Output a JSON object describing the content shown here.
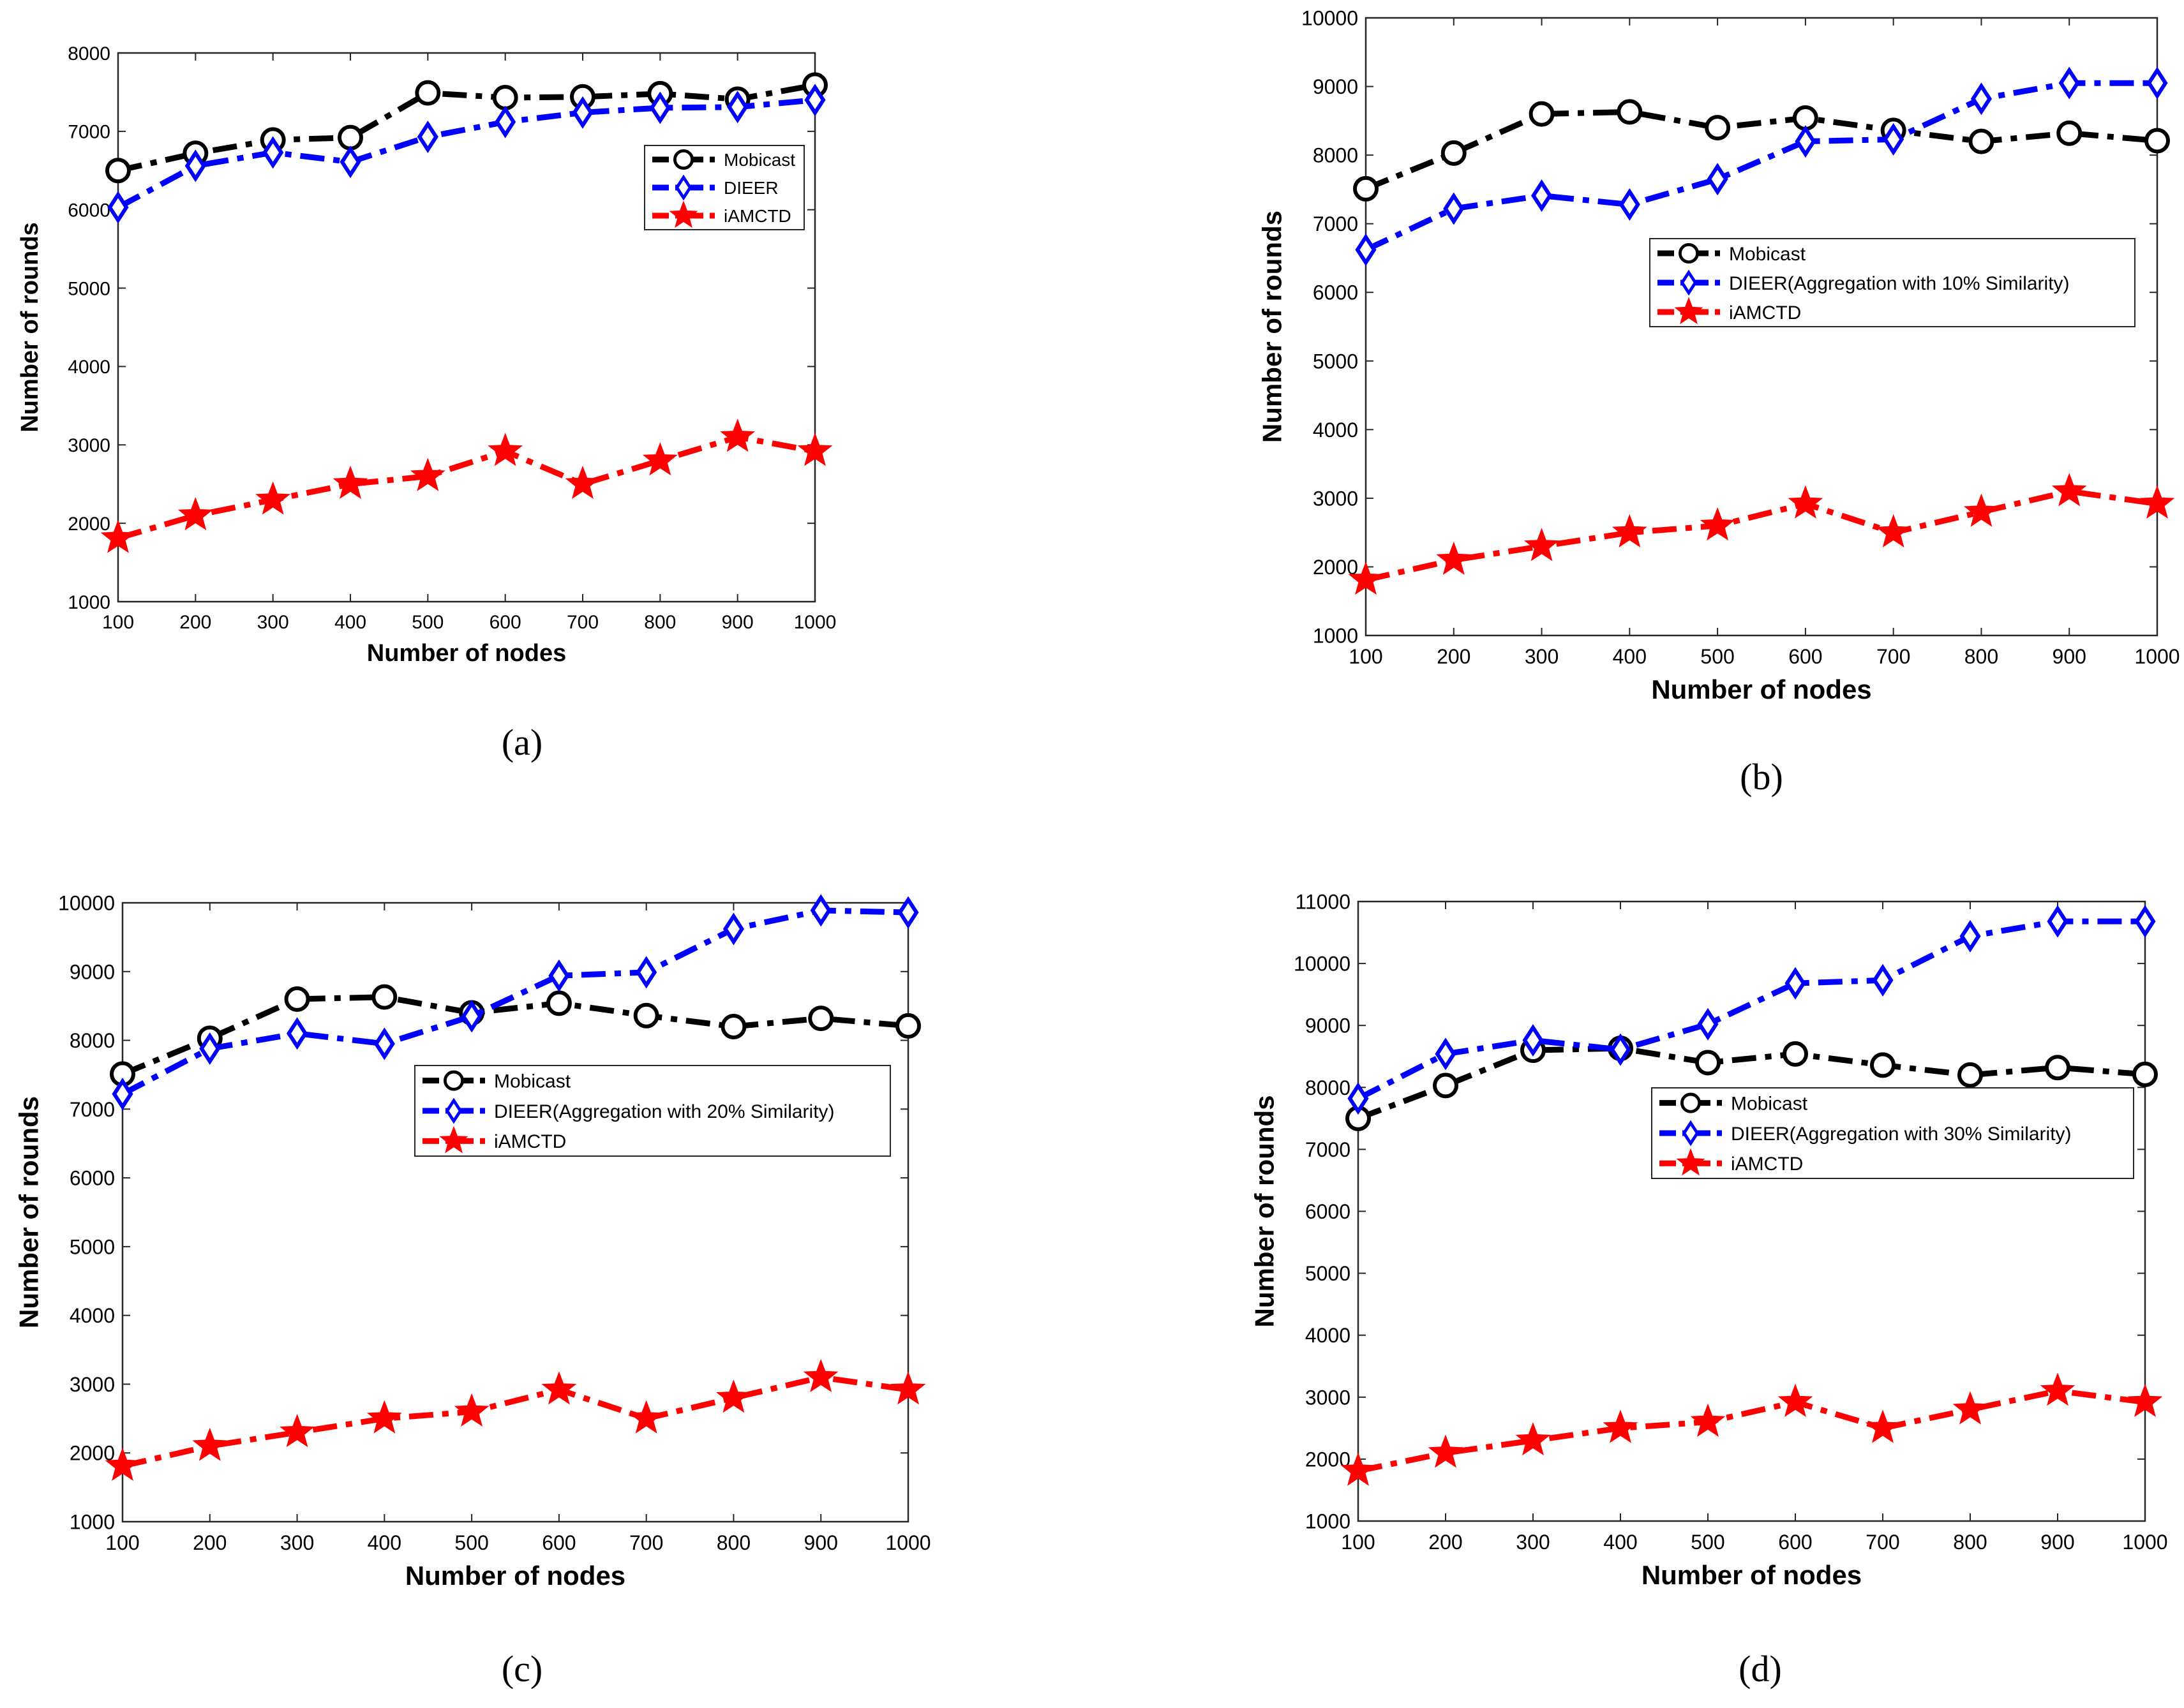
{
  "chart_data": [
    {
      "type": "line",
      "caption": "(a)",
      "xlabel": "Number of nodes",
      "ylabel": "Number of rounds",
      "xlim": [
        100,
        1000
      ],
      "ylim": [
        1000,
        8000
      ],
      "xticks": [
        100,
        200,
        300,
        400,
        500,
        600,
        700,
        800,
        900,
        1000
      ],
      "yticks": [
        1000,
        2000,
        3000,
        4000,
        5000,
        6000,
        7000,
        8000
      ],
      "grid": false,
      "legend_position": "upper-right",
      "x": [
        100,
        200,
        300,
        400,
        500,
        600,
        700,
        800,
        900,
        1000
      ],
      "series": [
        {
          "name": "Mobicast",
          "color": "#000000",
          "marker": "circle",
          "values": [
            6500,
            6720,
            6890,
            6920,
            7490,
            7430,
            7440,
            7480,
            7410,
            7590
          ]
        },
        {
          "name": "DIEER",
          "color": "#0000ff",
          "marker": "diamond",
          "values": [
            6030,
            6560,
            6730,
            6610,
            6930,
            7120,
            7240,
            7300,
            7310,
            7400
          ]
        },
        {
          "name": "iAMCTD",
          "color": "#ff0000",
          "marker": "star",
          "values": [
            1810,
            2100,
            2300,
            2500,
            2600,
            2920,
            2500,
            2800,
            3100,
            2920
          ]
        }
      ]
    },
    {
      "type": "line",
      "caption": "(b)",
      "xlabel": "Number of nodes",
      "ylabel": "Number of rounds",
      "xlim": [
        100,
        1000
      ],
      "ylim": [
        1000,
        10000
      ],
      "xticks": [
        100,
        200,
        300,
        400,
        500,
        600,
        700,
        800,
        900,
        1000
      ],
      "yticks": [
        1000,
        2000,
        3000,
        4000,
        5000,
        6000,
        7000,
        8000,
        9000,
        10000
      ],
      "grid": false,
      "legend_position": "upper-right",
      "x": [
        100,
        200,
        300,
        400,
        500,
        600,
        700,
        800,
        900,
        1000
      ],
      "series": [
        {
          "name": "Mobicast",
          "color": "#000000",
          "marker": "circle",
          "values": [
            7510,
            8030,
            8600,
            8630,
            8400,
            8540,
            8360,
            8200,
            8320,
            8210
          ]
        },
        {
          "name": "DIEER(Aggregation with 10% Similarity)",
          "color": "#0000ff",
          "marker": "diamond",
          "values": [
            6620,
            7220,
            7410,
            7280,
            7650,
            8200,
            8230,
            8820,
            9050,
            9050
          ]
        },
        {
          "name": "iAMCTD",
          "color": "#ff0000",
          "marker": "star",
          "values": [
            1810,
            2100,
            2300,
            2500,
            2600,
            2920,
            2500,
            2800,
            3100,
            2920
          ]
        }
      ]
    },
    {
      "type": "line",
      "caption": "(c)",
      "xlabel": "Number of nodes",
      "ylabel": "Number of rounds",
      "xlim": [
        100,
        1000
      ],
      "ylim": [
        1000,
        10000
      ],
      "xticks": [
        100,
        200,
        300,
        400,
        500,
        600,
        700,
        800,
        900,
        1000
      ],
      "yticks": [
        1000,
        2000,
        3000,
        4000,
        5000,
        6000,
        7000,
        8000,
        9000,
        10000
      ],
      "grid": false,
      "legend_position": "upper-right",
      "x": [
        100,
        200,
        300,
        400,
        500,
        600,
        700,
        800,
        900,
        1000
      ],
      "series": [
        {
          "name": "Mobicast",
          "color": "#000000",
          "marker": "circle",
          "values": [
            7510,
            8030,
            8600,
            8630,
            8400,
            8540,
            8360,
            8200,
            8320,
            8210
          ]
        },
        {
          "name": "DIEER(Aggregation with 20% Similarity)",
          "color": "#0000ff",
          "marker": "diamond",
          "values": [
            7220,
            7880,
            8100,
            7950,
            8350,
            8940,
            8990,
            9620,
            9890,
            9860
          ]
        },
        {
          "name": "iAMCTD",
          "color": "#ff0000",
          "marker": "star",
          "values": [
            1810,
            2100,
            2300,
            2500,
            2600,
            2920,
            2500,
            2800,
            3100,
            2920
          ]
        }
      ]
    },
    {
      "type": "line",
      "caption": "(d)",
      "xlabel": "Number of nodes",
      "ylabel": "Number of rounds",
      "xlim": [
        100,
        1000
      ],
      "ylim": [
        1000,
        11000
      ],
      "xticks": [
        100,
        200,
        300,
        400,
        500,
        600,
        700,
        800,
        900,
        1000
      ],
      "yticks": [
        1000,
        2000,
        3000,
        4000,
        5000,
        6000,
        7000,
        8000,
        9000,
        10000,
        11000
      ],
      "grid": false,
      "legend_position": "upper-right",
      "x": [
        100,
        200,
        300,
        400,
        500,
        600,
        700,
        800,
        900,
        1000
      ],
      "series": [
        {
          "name": "Mobicast",
          "color": "#000000",
          "marker": "circle",
          "values": [
            7500,
            8030,
            8600,
            8630,
            8400,
            8540,
            8360,
            8200,
            8320,
            8210
          ]
        },
        {
          "name": "DIEER(Aggregation with 30% Similarity)",
          "color": "#0000ff",
          "marker": "diamond",
          "values": [
            7820,
            8540,
            8760,
            8610,
            9020,
            9680,
            9730,
            10440,
            10680,
            10680
          ]
        },
        {
          "name": "iAMCTD",
          "color": "#ff0000",
          "marker": "star",
          "values": [
            1810,
            2100,
            2300,
            2500,
            2600,
            2920,
            2500,
            2800,
            3100,
            2920
          ]
        }
      ]
    }
  ]
}
